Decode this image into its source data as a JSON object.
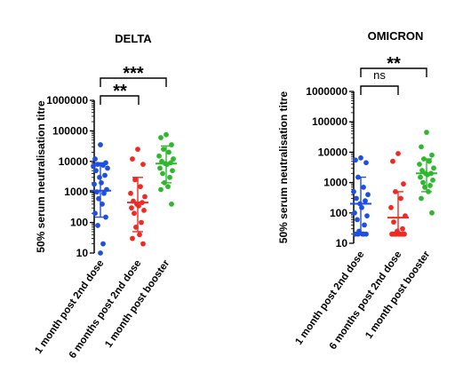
{
  "ylabel": "50% serum neutralisation titre",
  "chart_data": [
    {
      "type": "scatter",
      "title": "DELTA",
      "ylabel": "50% serum neutralisation titre",
      "yscale": "log",
      "ylim": [
        10,
        1000000
      ],
      "yticks": [
        "10",
        "100",
        "1000",
        "10000",
        "100000",
        "1000000"
      ],
      "categories": [
        "1 month post 2nd dose",
        "6 months post 2nd dose",
        "1 month post booster"
      ],
      "colors": [
        "#1f4fe0",
        "#ee2a24",
        "#2db82d"
      ],
      "series": [
        {
          "name": "1 month post 2nd dose",
          "median": 1100,
          "low": 150,
          "high": 9000,
          "values": [
            35000,
            12000,
            9000,
            8000,
            7500,
            7000,
            6000,
            5000,
            3500,
            3000,
            2000,
            1800,
            1200,
            1000,
            900,
            600,
            400,
            200,
            150,
            80,
            20,
            10
          ]
        },
        {
          "name": "6 months post 2nd dose",
          "median": 450,
          "low": 50,
          "high": 3000,
          "values": [
            25000,
            12000,
            8000,
            2500,
            1500,
            900,
            700,
            500,
            450,
            400,
            350,
            300,
            250,
            200,
            100,
            70,
            40,
            30,
            20
          ]
        },
        {
          "name": "1 month post booster",
          "median": 8500,
          "low": 2000,
          "high": 32000,
          "values": [
            75000,
            60000,
            35000,
            25000,
            20000,
            15000,
            12000,
            10000,
            9000,
            8500,
            8000,
            6000,
            5000,
            4000,
            3000,
            2000,
            1500,
            1200,
            400
          ]
        }
      ],
      "comparisons": [
        {
          "from": 0,
          "to": 2,
          "label": "***"
        },
        {
          "from": 0,
          "to": 1,
          "label": "**"
        }
      ]
    },
    {
      "type": "scatter",
      "title": "OMICRON",
      "ylabel": "50% serum neutralisation titre",
      "yscale": "log",
      "ylim": [
        10,
        1000000
      ],
      "yticks": [
        "10",
        "100",
        "1000",
        "10000",
        "100000",
        "1000000"
      ],
      "categories": [
        "1 month post 2nd dose",
        "6 months post 2nd dose",
        "1 month post booster"
      ],
      "colors": [
        "#1f4fe0",
        "#ee2a24",
        "#2db82d"
      ],
      "series": [
        {
          "name": "1 month post 2nd dose",
          "median": 200,
          "low": 20,
          "high": 1500,
          "values": [
            6500,
            5500,
            4500,
            1500,
            700,
            500,
            400,
            300,
            250,
            200,
            150,
            100,
            80,
            60,
            40,
            25,
            20,
            20,
            20,
            20,
            20
          ]
        },
        {
          "name": "6 months post 2nd dose",
          "median": 70,
          "low": 20,
          "high": 500,
          "values": [
            9000,
            5000,
            900,
            500,
            300,
            150,
            80,
            50,
            30,
            25,
            20,
            20,
            20,
            20,
            20,
            20,
            20,
            20,
            20
          ]
        },
        {
          "name": "1 month post booster",
          "median": 2000,
          "low": 500,
          "high": 6000,
          "values": [
            45000,
            15000,
            8000,
            6000,
            5000,
            4000,
            3000,
            2500,
            2000,
            2000,
            1800,
            1500,
            1200,
            1000,
            800,
            700,
            500,
            300,
            100
          ]
        }
      ],
      "comparisons": [
        {
          "from": 0,
          "to": 2,
          "label": "**"
        },
        {
          "from": 0,
          "to": 1,
          "label": "ns"
        }
      ]
    }
  ]
}
